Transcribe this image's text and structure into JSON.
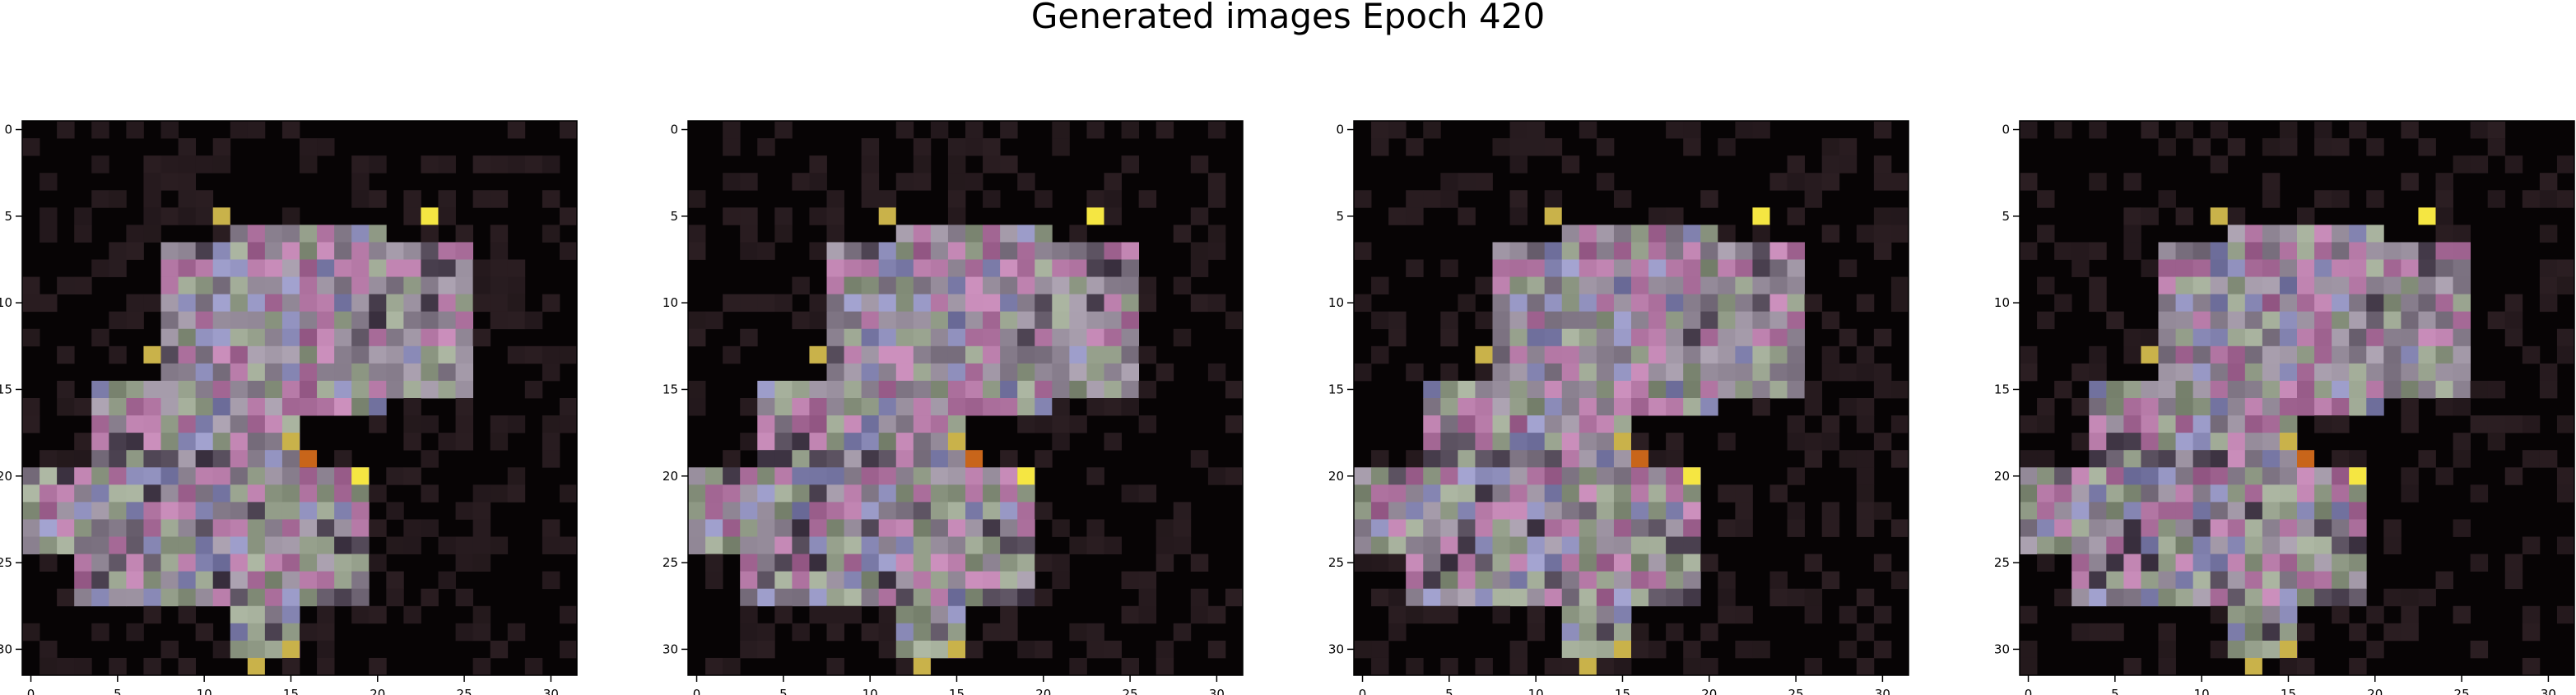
{
  "figure": {
    "title": "Generated images Epoch 420"
  },
  "chart_data": [
    {
      "type": "heatmap",
      "title": "",
      "xlabel": "",
      "ylabel": "",
      "xticks": [
        0,
        5,
        10,
        15,
        20,
        25,
        30
      ],
      "yticks": [
        0,
        5,
        10,
        15,
        20,
        25,
        30
      ],
      "xlim": [
        -0.5,
        31.5
      ],
      "ylim": [
        31.5,
        -0.5
      ],
      "grid": false,
      "shape": [
        32,
        32
      ],
      "bright_cells": [
        [
          5,
          23
        ],
        [
          20,
          19
        ],
        [
          13,
          7
        ]
      ],
      "accent_colors": {
        "yellow": "#f5e642",
        "olive": "#c9b24a",
        "orange": "#c8651a"
      }
    },
    {
      "type": "heatmap",
      "title": "",
      "xlabel": "",
      "ylabel": "",
      "xticks": [
        0,
        5,
        10,
        15,
        20,
        25,
        30
      ],
      "yticks": [
        0,
        5,
        10,
        15,
        20,
        25,
        30
      ],
      "xlim": [
        -0.5,
        31.5
      ],
      "ylim": [
        31.5,
        -0.5
      ],
      "grid": false,
      "shape": [
        32,
        32
      ],
      "bright_cells": [
        [
          5,
          23
        ],
        [
          20,
          19
        ],
        [
          13,
          7
        ]
      ],
      "accent_colors": {
        "yellow": "#f5e642",
        "olive": "#c9b24a",
        "orange": "#c8651a"
      }
    },
    {
      "type": "heatmap",
      "title": "",
      "xlabel": "",
      "ylabel": "",
      "xticks": [
        0,
        5,
        10,
        15,
        20,
        25,
        30
      ],
      "yticks": [
        0,
        5,
        10,
        15,
        20,
        25,
        30
      ],
      "xlim": [
        -0.5,
        31.5
      ],
      "ylim": [
        31.5,
        -0.5
      ],
      "grid": false,
      "shape": [
        32,
        32
      ],
      "bright_cells": [
        [
          5,
          23
        ],
        [
          20,
          19
        ],
        [
          13,
          7
        ]
      ],
      "accent_colors": {
        "yellow": "#f5e642",
        "olive": "#c9b24a",
        "orange": "#c8651a"
      }
    },
    {
      "type": "heatmap",
      "title": "",
      "xlabel": "",
      "ylabel": "",
      "xticks": [
        0,
        5,
        10,
        15,
        20,
        25,
        30
      ],
      "yticks": [
        0,
        5,
        10,
        15,
        20,
        25,
        30
      ],
      "xlim": [
        -0.5,
        31.5
      ],
      "ylim": [
        31.5,
        -0.5
      ],
      "grid": false,
      "shape": [
        32,
        32
      ],
      "bright_cells": [
        [
          5,
          23
        ],
        [
          20,
          19
        ],
        [
          13,
          7
        ]
      ],
      "accent_colors": {
        "yellow": "#f5e642",
        "olive": "#c9b24a",
        "orange": "#c8651a"
      }
    }
  ]
}
